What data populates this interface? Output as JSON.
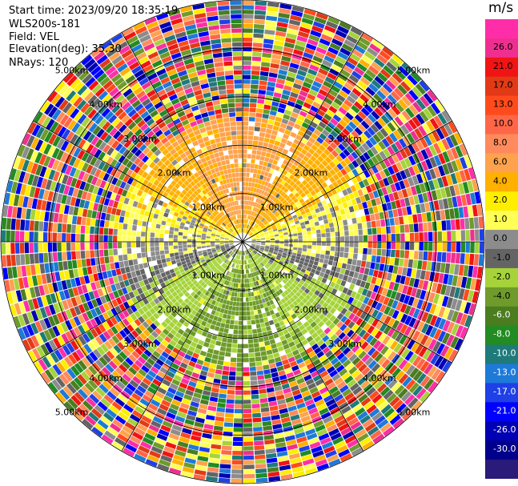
{
  "header": {
    "start_time": "Start time: 2023/09/20 18:35:19",
    "instrument": "WLS200s-181",
    "field": "Field: VEL",
    "elevation": "Elevation(deg): 35.30",
    "nrays": "NRays: 120"
  },
  "chart_data": {
    "type": "ppi",
    "field": "VEL",
    "units": "m/s",
    "nrays": 120,
    "max_range_km": 5.0,
    "range_rings_km": [
      1.0,
      2.0,
      3.0,
      4.0,
      5.0
    ],
    "ring_labels": [
      "1.00km",
      "2.00km",
      "3.00km",
      "4.00km",
      "5.00km"
    ],
    "colorbar": {
      "ticks": [
        "26.0",
        "21.0",
        "17.0",
        "13.0",
        "10.0",
        "8.0",
        "6.0",
        "4.0",
        "2.0",
        "1.0",
        "0.0",
        "-1.0",
        "-2.0",
        "-4.0",
        "-6.0",
        "-8.0",
        "-10.0",
        "-13.0",
        "-17.0",
        "-21.0",
        "-26.0",
        "-30.0"
      ],
      "bounds": [
        30,
        26,
        21,
        17,
        13,
        10,
        8,
        6,
        4,
        2,
        1,
        0,
        -1,
        -2,
        -4,
        -6,
        -8,
        -10,
        -13,
        -17,
        -21,
        -26,
        -30
      ],
      "colors": [
        "#ff2ea8",
        "#ef2f8f",
        "#f01414",
        "#e23a16",
        "#ff4b1c",
        "#ff6647",
        "#ff8a5c",
        "#ffa24d",
        "#ffb000",
        "#ffee00",
        "#ffff55",
        "#8c8c8c",
        "#646464",
        "#a6d33a",
        "#6e9b2a",
        "#4a7d20",
        "#228b22",
        "#1f7a7a",
        "#1e7ad8",
        "#1e40e6",
        "#0000ff",
        "#0000b4",
        "#00008c",
        "#2a1a7a"
      ]
    },
    "velocity_pattern": {
      "inner_positive_range_km": [
        0.0,
        2.6
      ],
      "positive_azimuth_deg": [
        270,
        90
      ],
      "near_zero_azimuth_deg": [
        250,
        290
      ],
      "negative_range_km": [
        0.0,
        2.6
      ],
      "noise_beyond_km": 2.6
    }
  }
}
